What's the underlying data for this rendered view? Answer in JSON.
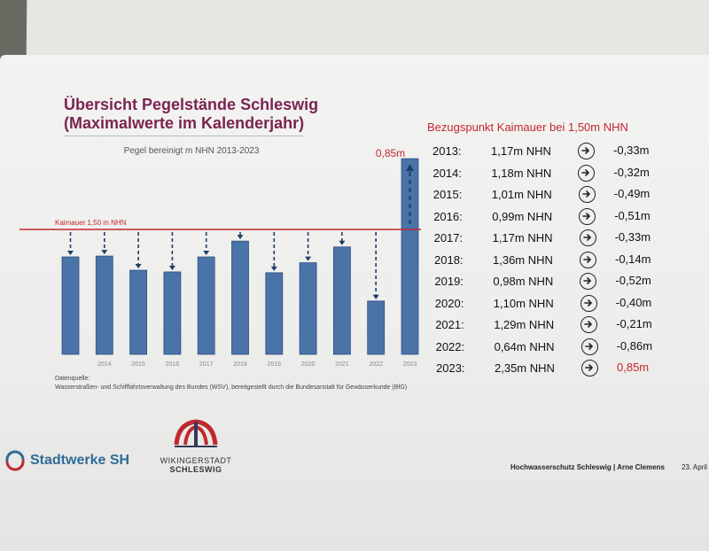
{
  "title": {
    "line1": "Übersicht Pegelstände Schleswig",
    "line2": "(Maximalwerte im Kalenderjahr)"
  },
  "chart_data": {
    "type": "bar",
    "title": "Pegel bereinigt m NHN 2013-2023",
    "categories": [
      "",
      "2014",
      "2015",
      "2016",
      "2017",
      "2018",
      "2019",
      "2020",
      "2021",
      "2022",
      "2023"
    ],
    "values": [
      1.17,
      1.18,
      1.01,
      0.99,
      1.17,
      1.36,
      0.98,
      1.1,
      1.29,
      0.64,
      2.35
    ],
    "ylim": [
      0,
      2.5
    ],
    "reference_line": {
      "value": 1.5,
      "label": "Kaimauer 1,50 m NHN"
    },
    "annotation": "0,85m",
    "bar_color": "#4a73a8",
    "ref_color": "#c0282e",
    "grid": false
  },
  "footnote": {
    "line1": "Datenquelle:",
    "line2": "Wasserstraßen- und Schifffahrtsverwaltung des Bundes (WSV), bereitgestellt durch die Bundesanstalt für Gewässerkunde (BfG)"
  },
  "table": {
    "title": "Bezugspunkt Kaimauer bei 1,50m NHN",
    "rows": [
      {
        "year": "2013:",
        "value": "1,17m NHN",
        "diff": "-0,33m"
      },
      {
        "year": "2014:",
        "value": "1,18m NHN",
        "diff": "-0,32m"
      },
      {
        "year": "2015:",
        "value": "1,01m NHN",
        "diff": "-0,49m"
      },
      {
        "year": "2016:",
        "value": "0,99m NHN",
        "diff": "-0,51m"
      },
      {
        "year": "2017:",
        "value": "1,17m NHN",
        "diff": "-0,33m"
      },
      {
        "year": "2018:",
        "value": "1,36m NHN",
        "diff": "-0,14m"
      },
      {
        "year": "2019:",
        "value": "0,98m NHN",
        "diff": "-0,52m"
      },
      {
        "year": "2020:",
        "value": "1,10m NHN",
        "diff": "-0,40m"
      },
      {
        "year": "2021:",
        "value": "1,29m NHN",
        "diff": "-0,21m"
      },
      {
        "year": "2022:",
        "value": "0,64m NHN",
        "diff": "-0,86m"
      },
      {
        "year": "2023:",
        "value": "2,35m NHN",
        "diff": "0,85m"
      }
    ]
  },
  "logos": {
    "stadtwerke": "Stadtwerke SH",
    "wikinger_line1": "WIKINGERSTADT",
    "wikinger_line2": "SCHLESWIG"
  },
  "footer": {
    "text": "Hochwasserschutz Schleswig | Arne Clemens",
    "date": "23. April"
  },
  "colors": {
    "title": "#7b2450",
    "accent_red": "#c0282e",
    "logo_blue": "#2f6b9a"
  }
}
